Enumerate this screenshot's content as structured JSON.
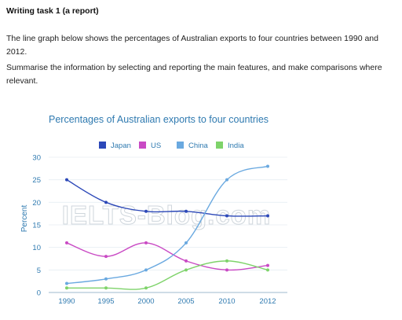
{
  "task": {
    "title": "Writing task 1 (a report)",
    "intro": "The line graph below shows the percentages of Australian exports to four countries between 1990 and 2012.",
    "instruction": "Summarise the information by selecting and reporting the main features, and make comparisons where relevant."
  },
  "watermark": "IELTS-Blog.com",
  "chart_data": {
    "type": "line",
    "title": "Percentages of Australian exports to four countries",
    "ylabel": "Percent",
    "xlabel": "",
    "x": [
      "1990",
      "1995",
      "2000",
      "2005",
      "2010",
      "2012"
    ],
    "ylim": [
      0,
      30
    ],
    "yticks": [
      0,
      5,
      10,
      15,
      20,
      25,
      30
    ],
    "grid": true,
    "legend_position": "top",
    "series": [
      {
        "name": "Japan",
        "color": "#2c48b8",
        "values": [
          25,
          20,
          18,
          18,
          17,
          17
        ]
      },
      {
        "name": "US",
        "color": "#c94ac4",
        "values": [
          11,
          8,
          11,
          7,
          5,
          6
        ]
      },
      {
        "name": "China",
        "color": "#6aa9e0",
        "values": [
          2,
          3,
          5,
          11,
          25,
          28
        ]
      },
      {
        "name": "India",
        "color": "#7ed36a",
        "values": [
          1,
          1,
          1,
          5,
          7,
          5
        ]
      }
    ]
  }
}
